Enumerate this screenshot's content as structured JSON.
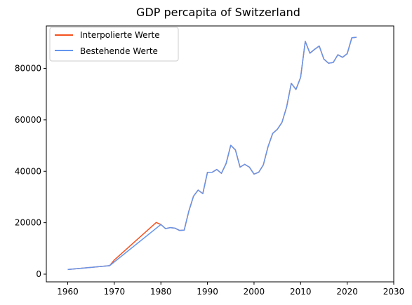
{
  "chart_data": {
    "type": "line",
    "title": "GDP percapita of Switzerland",
    "xlabel": "",
    "ylabel": "",
    "xlim": [
      1955.4,
      2030
    ],
    "ylim": [
      -3000,
      96500
    ],
    "xticks": [
      1960,
      1970,
      1980,
      1990,
      2000,
      2010,
      2020,
      2030
    ],
    "yticks": [
      0,
      20000,
      40000,
      60000,
      80000
    ],
    "grid": false,
    "legend": "top-left",
    "series": [
      {
        "name": "Interpolierte Werte",
        "color": "#f4511e",
        "x": [
          1960,
          1969,
          1970,
          1979,
          1980,
          1981,
          1982,
          1983,
          1984,
          1985,
          1986,
          1987,
          1988,
          1989,
          1990,
          1991,
          1992,
          1993,
          1994,
          1995,
          1996,
          1997,
          1998,
          1999,
          2000,
          2001,
          2002,
          2003,
          2004,
          2005,
          2006,
          2007,
          2008,
          2009,
          2010,
          2011,
          2012,
          2013,
          2014,
          2015,
          2016,
          2017,
          2018,
          2019,
          2020,
          2021,
          2022
        ],
        "y": [
          1800,
          3300,
          5500,
          20100,
          19300,
          17700,
          18100,
          17900,
          17000,
          17100,
          24500,
          30300,
          32700,
          31300,
          39600,
          39600,
          40700,
          39200,
          43000,
          50100,
          48300,
          41600,
          42700,
          41600,
          38900,
          39600,
          42500,
          49500,
          54700,
          56300,
          59000,
          65000,
          74200,
          71800,
          76500,
          90500,
          85900,
          87400,
          88700,
          83600,
          82000,
          82300,
          85300,
          84300,
          85700,
          91900,
          92100
        ]
      },
      {
        "name": "Bestehende Werte",
        "color": "#6495ed",
        "x": [
          1960,
          1969,
          1980,
          1981,
          1982,
          1983,
          1984,
          1985,
          1986,
          1987,
          1988,
          1989,
          1990,
          1991,
          1992,
          1993,
          1994,
          1995,
          1996,
          1997,
          1998,
          1999,
          2000,
          2001,
          2002,
          2003,
          2004,
          2005,
          2006,
          2007,
          2008,
          2009,
          2010,
          2011,
          2012,
          2013,
          2014,
          2015,
          2016,
          2017,
          2018,
          2019,
          2020,
          2021,
          2022
        ],
        "y": [
          1800,
          3300,
          19300,
          17700,
          18100,
          17900,
          17000,
          17100,
          24500,
          30300,
          32700,
          31300,
          39600,
          39600,
          40700,
          39200,
          43000,
          50100,
          48300,
          41600,
          42700,
          41600,
          38900,
          39600,
          42500,
          49500,
          54700,
          56300,
          59000,
          65000,
          74200,
          71800,
          76500,
          90500,
          85900,
          87400,
          88700,
          83600,
          82000,
          82300,
          85300,
          84300,
          85700,
          91900,
          92100
        ]
      }
    ]
  }
}
